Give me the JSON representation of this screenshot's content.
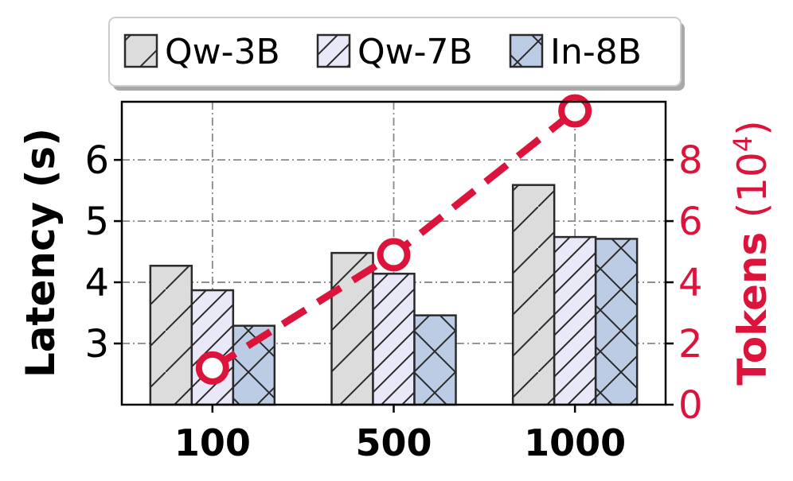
{
  "chart_data": {
    "type": "bar",
    "categories": [
      "100",
      "500",
      "1000"
    ],
    "series": [
      {
        "name": "Qw-3B",
        "values": [
          4.27,
          4.48,
          5.59
        ],
        "color": "#dcdcdc",
        "hatch": "backslash"
      },
      {
        "name": "Qw-7B",
        "values": [
          3.87,
          4.14,
          4.74
        ],
        "color": "#e8e8f8",
        "hatch": "slash"
      },
      {
        "name": "In-8B",
        "values": [
          3.29,
          3.46,
          4.71
        ],
        "color": "#bcccE4",
        "hatch": "cross"
      }
    ],
    "line_series": {
      "name": "Tokens",
      "values": [
        1.2,
        4.9,
        9.6
      ],
      "color": "#dc143c",
      "axis": "right",
      "style": "dashed",
      "marker": "open-circle"
    },
    "ylabel": "Latency (s)",
    "ylim": [
      2.0,
      6.95
    ],
    "yticks": [
      "3",
      "4",
      "5",
      "6"
    ],
    "y2label": "Tokens",
    "y2label_unit": "10",
    "y2label_exp": "4",
    "y2lim": [
      0,
      9.9
    ],
    "y2ticks": [
      "0",
      "2",
      "4",
      "6",
      "8"
    ],
    "grid": true,
    "legend": "top",
    "legend_entries": [
      "Qw-3B",
      "Qw-7B",
      "In-8B"
    ]
  }
}
